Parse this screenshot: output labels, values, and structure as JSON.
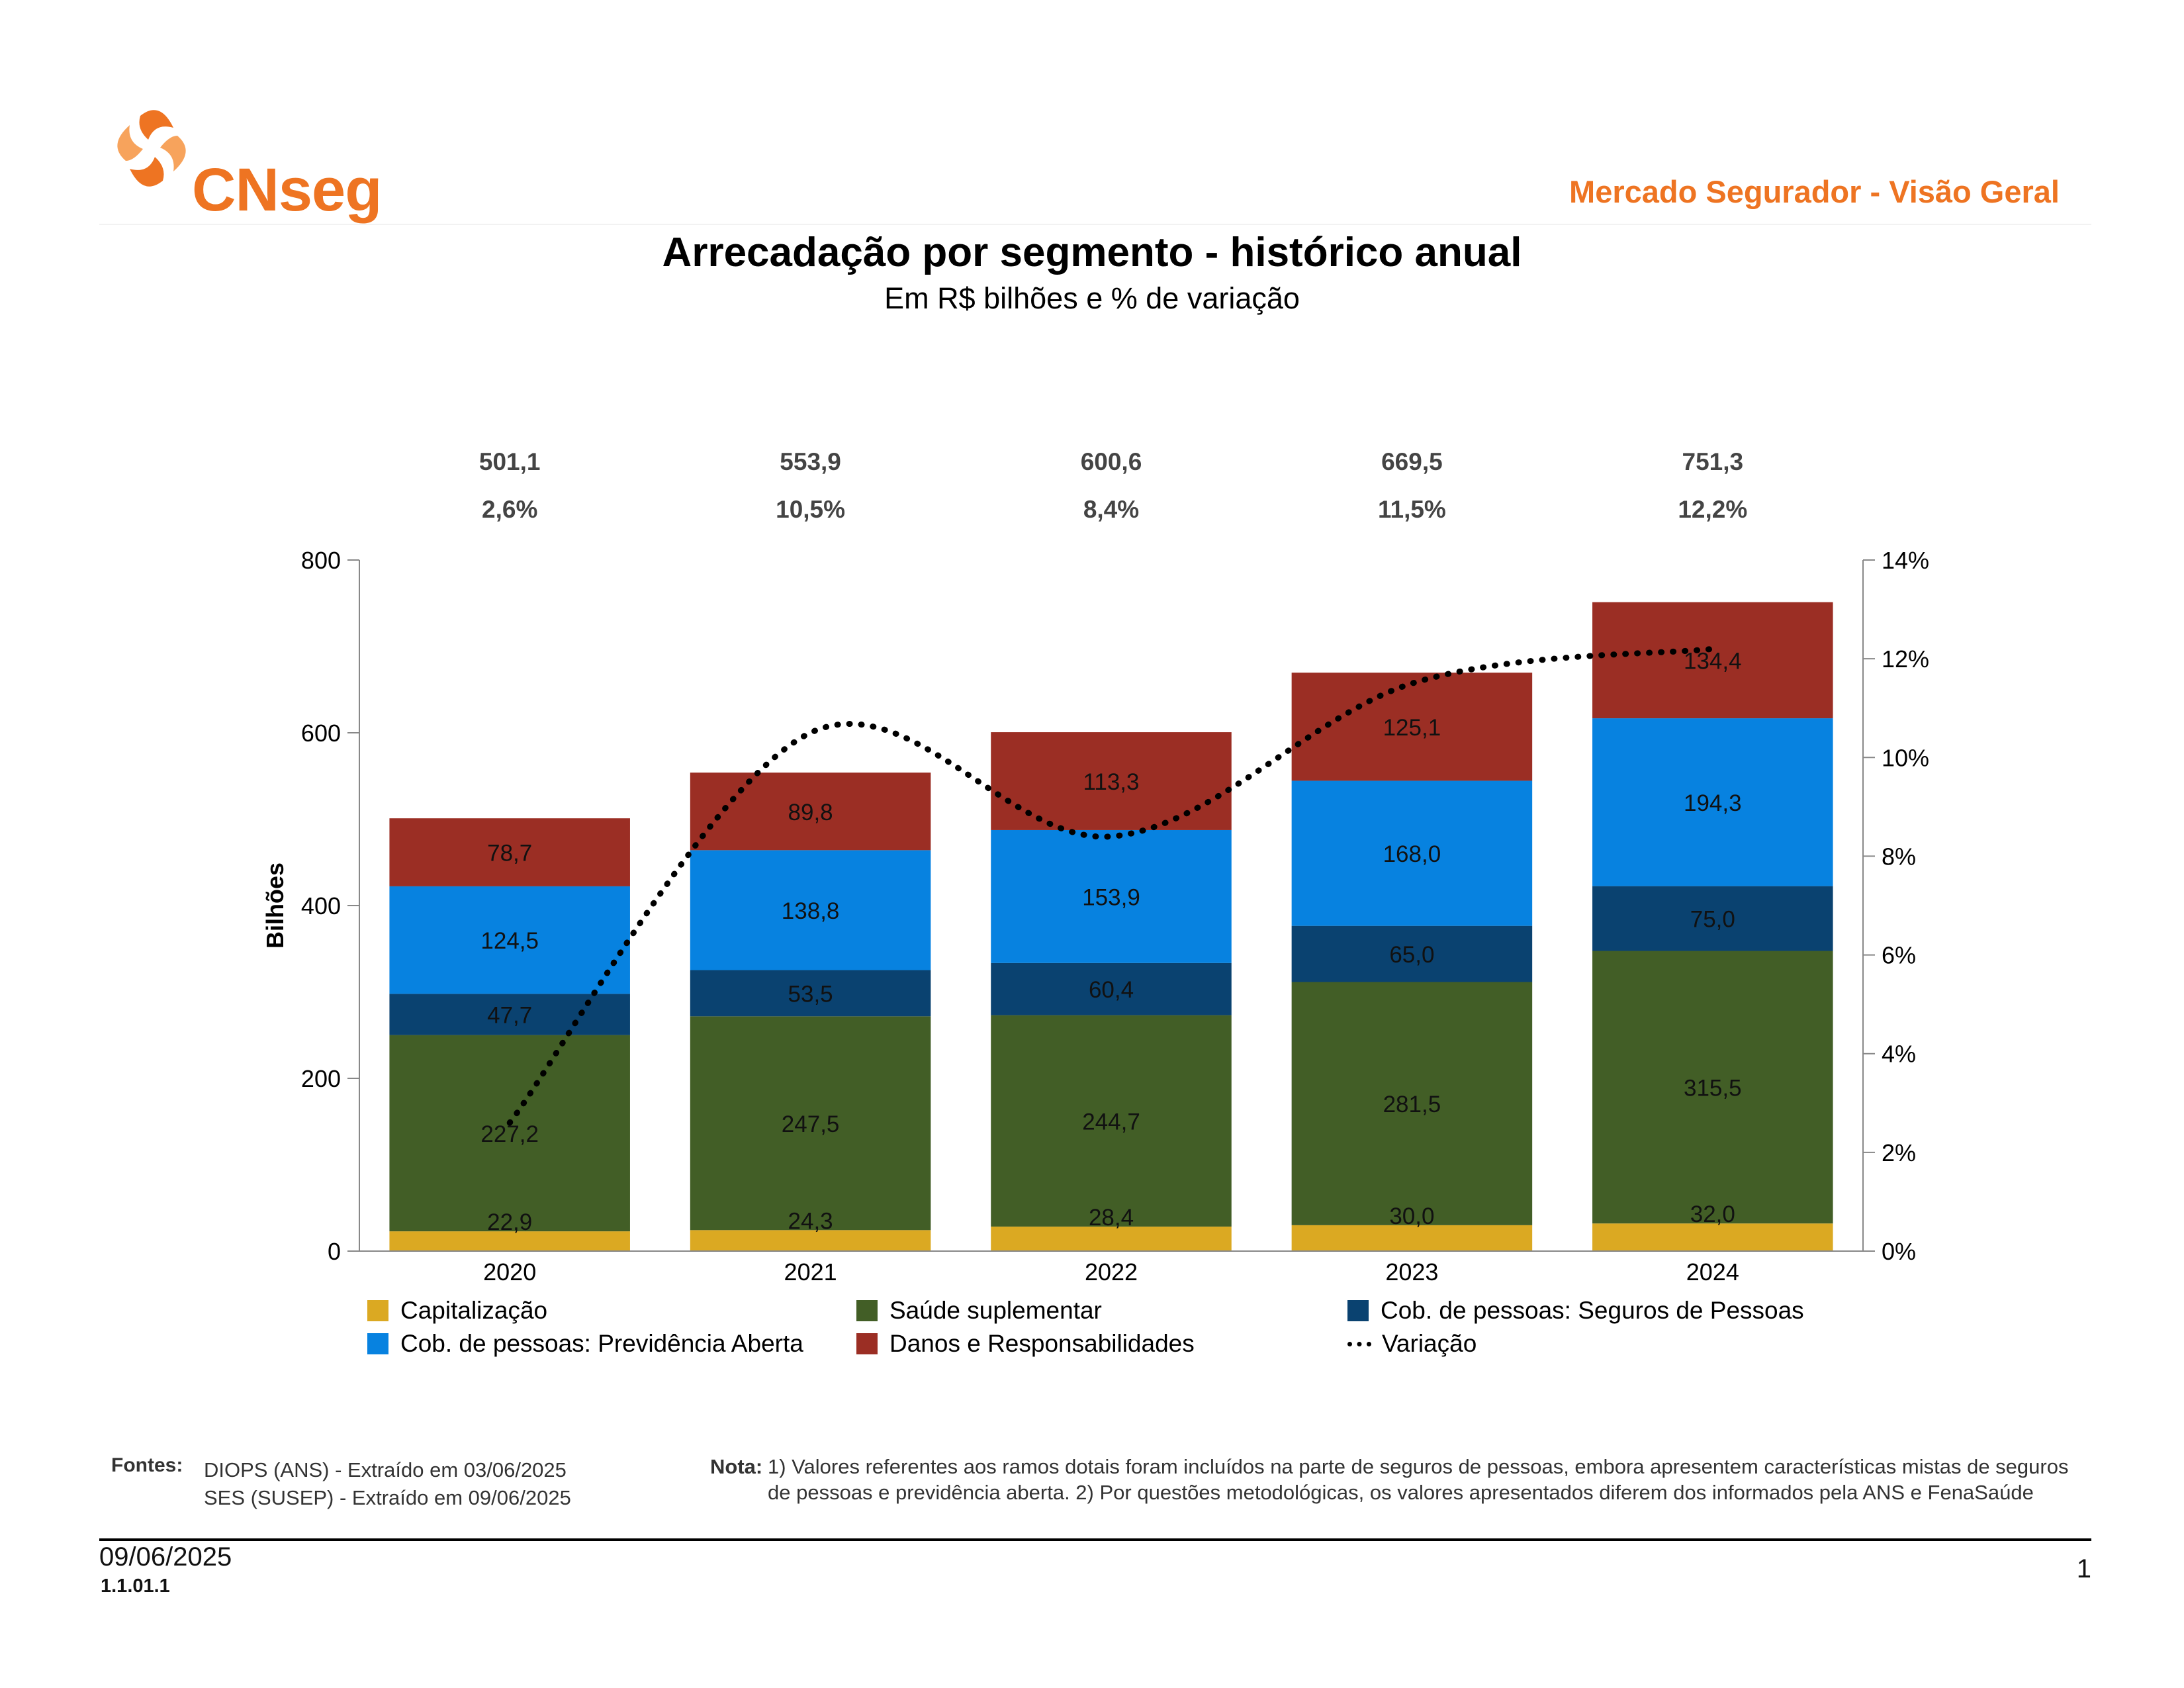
{
  "header": {
    "logo_text": "CNseg",
    "report_title": "Mercado Segurador - Visão Geral",
    "logo_colors": [
      "#ee7422",
      "#f7a35c"
    ]
  },
  "chart_data": {
    "type": "bar",
    "stacked": true,
    "title": "Arrecadação por segmento - histórico anual",
    "subtitle": "Em R$ bilhões e % de variação",
    "categories": [
      "2020",
      "2021",
      "2022",
      "2023",
      "2024"
    ],
    "ylabel": "Bilhões",
    "ylim": [
      0,
      800
    ],
    "yticks": [
      "0",
      "200",
      "400",
      "600",
      "800"
    ],
    "y2lim": [
      0,
      14
    ],
    "y2ticks": [
      "0%",
      "2%",
      "4%",
      "6%",
      "8%",
      "10%",
      "12%",
      "14%"
    ],
    "series": [
      {
        "name": "Capitalização",
        "color": "#dba922",
        "values": [
          22.9,
          24.3,
          28.4,
          30.0,
          32.0
        ],
        "labels": [
          "22,9",
          "24,3",
          "28,4",
          "30,0",
          "32,0"
        ]
      },
      {
        "name": "Saúde suplementar",
        "color": "#425e26",
        "values": [
          227.2,
          247.5,
          244.7,
          281.5,
          315.5
        ],
        "labels": [
          "227,2",
          "247,5",
          "244,7",
          "281,5",
          "315,5"
        ]
      },
      {
        "name": "Cob. de pessoas: Seguros de Pessoas",
        "color": "#0a4270",
        "values": [
          47.7,
          53.5,
          60.4,
          65.0,
          75.0
        ],
        "labels": [
          "47,7",
          "53,5",
          "60,4",
          "65,0",
          "75,0"
        ]
      },
      {
        "name": "Cob. de pessoas: Previdência Aberta",
        "color": "#0782e0",
        "values": [
          124.5,
          138.8,
          153.9,
          168.0,
          194.3
        ],
        "labels": [
          "124,5",
          "138,8",
          "153,9",
          "168,0",
          "194,3"
        ]
      },
      {
        "name": "Danos e Responsabilidades",
        "color": "#9b2e24",
        "values": [
          78.7,
          89.8,
          113.3,
          125.1,
          134.4
        ],
        "labels": [
          "78,7",
          "89,8",
          "113,3",
          "125,1",
          "134,4"
        ]
      }
    ],
    "line_series": {
      "name": "Variação",
      "axis": "right",
      "values": [
        2.6,
        10.5,
        8.4,
        11.5,
        12.2
      ],
      "color": "#000000"
    },
    "totals": [
      "501,1",
      "553,9",
      "600,6",
      "669,5",
      "751,3"
    ],
    "variation_labels": [
      "2,6%",
      "10,5%",
      "8,4%",
      "11,5%",
      "12,2%"
    ],
    "legend_position": "bottom",
    "grid": false
  },
  "legend": {
    "line_label": "Variação"
  },
  "footer": {
    "fontes_label": "Fontes:",
    "fontes": [
      "DIOPS (ANS) -  Extraído em 03/06/2025",
      "SES (SUSEP) -  Extraído em 09/06/2025"
    ],
    "nota_label": "Nota:",
    "nota_text": "1) Valores referentes aos ramos dotais foram incluídos na parte de seguros de pessoas, embora apresentem características mistas de seguros de pessoas e previdência aberta. 2) Por questões metodológicas, os valores apresentados diferem dos informados pela ANS e FenaSaúde",
    "date": "09/06/2025",
    "code": "1.1.01.1",
    "page_number": "1"
  }
}
